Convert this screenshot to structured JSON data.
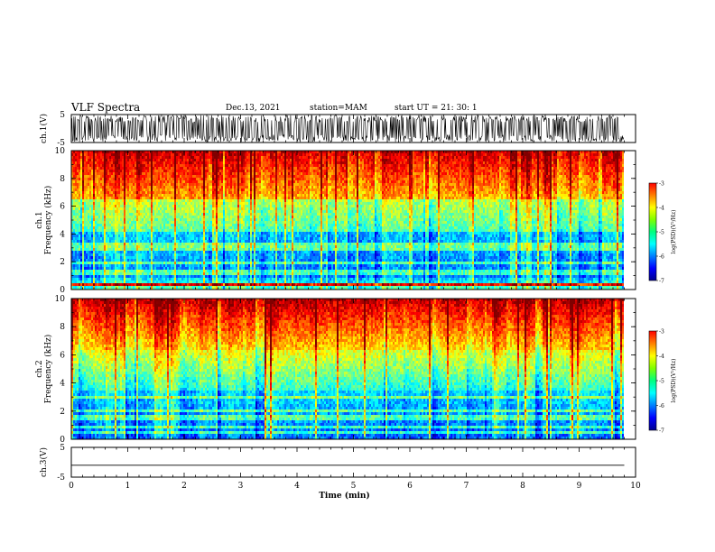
{
  "header": {
    "title": "VLF Spectra",
    "date": "Dec.13, 2021",
    "station": "station=MAM",
    "start_ut": "start  UT  =   21: 30: 1"
  },
  "chart_data": [
    {
      "type": "line",
      "name": "ch1-waveform",
      "ylabel": "ch.1(V)",
      "ylim": [
        -5,
        5
      ],
      "yticks": [
        -5,
        5
      ],
      "xlim": [
        0,
        10
      ],
      "description_of_trace": "dense waveform spanning nearly full range, data ends near 9.8 min"
    },
    {
      "type": "heatmap",
      "name": "ch1-spectrogram",
      "ylabel_channel": "ch.1",
      "ylabel": "Frequency (kHz)",
      "ylim": [
        0,
        10
      ],
      "yticks": [
        0,
        2,
        4,
        6,
        8,
        10
      ],
      "xlim": [
        0,
        10
      ],
      "colorbar": {
        "label": "log(PSD)(V²/Hz)",
        "range": [
          -7,
          -3
        ],
        "ticks": [
          -3,
          -4,
          -5,
          -6,
          -7
        ],
        "colormap": "jet"
      }
    },
    {
      "type": "heatmap",
      "name": "ch2-spectrogram",
      "ylabel_channel": "ch.2",
      "ylabel": "Frequency (kHz)",
      "ylim": [
        0,
        10
      ],
      "yticks": [
        0,
        2,
        4,
        6,
        8,
        10
      ],
      "xlim": [
        0,
        10
      ],
      "colorbar": {
        "label": "log(PSD)(V²/Hz)",
        "range": [
          -7,
          -3
        ],
        "ticks": [
          -3,
          -4,
          -5,
          -6,
          -7
        ],
        "colormap": "jet"
      }
    },
    {
      "type": "line",
      "name": "ch3-waveform",
      "ylabel": "ch.3(V)",
      "ylim": [
        -5,
        5
      ],
      "yticks": [
        -5,
        5
      ],
      "xlim": [
        0,
        10
      ],
      "xlabel": "Time (min)",
      "xticks": [
        0,
        1,
        2,
        3,
        4,
        5,
        6,
        7,
        8,
        9,
        10
      ],
      "y": [
        -1
      ]
    }
  ]
}
